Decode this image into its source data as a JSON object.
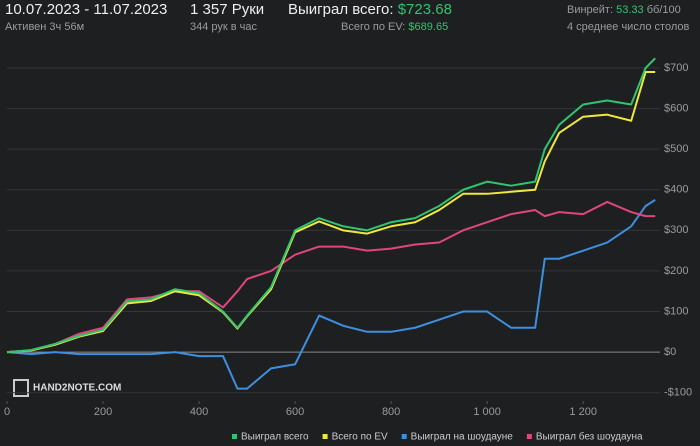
{
  "header": {
    "dates": "10.07.2023 - 11.07.2023",
    "active": "Активен 3ч 56м",
    "hands": "1 357 Руки",
    "hands_per_hour": "344 рук в час",
    "won_label": "Выиграл всего:",
    "won_value": "$723.68",
    "ev_label": "Всего по EV:",
    "ev_value": "$689.65",
    "winrate_label": "Винрейт:",
    "winrate_value": "53.33",
    "winrate_unit": "бб/100",
    "tables": "4 среднее число столов",
    "watermark": "HAND2NOTE.COM"
  },
  "chart_data": {
    "type": "line",
    "x": [
      0,
      50,
      100,
      150,
      200,
      250,
      300,
      350,
      400,
      450,
      480,
      500,
      550,
      600,
      650,
      700,
      750,
      800,
      850,
      900,
      950,
      1000,
      1050,
      1100,
      1120,
      1150,
      1200,
      1250,
      1300,
      1330,
      1350
    ],
    "series": [
      {
        "name": "Выиграл всего",
        "color": "#2fc46e",
        "values": [
          0,
          5,
          20,
          40,
          55,
          125,
          130,
          155,
          145,
          100,
          60,
          90,
          160,
          300,
          330,
          310,
          300,
          320,
          330,
          360,
          400,
          420,
          410,
          420,
          500,
          560,
          610,
          620,
          610,
          700,
          724
        ]
      },
      {
        "name": "Всего по EV",
        "color": "#f0e83c",
        "values": [
          0,
          4,
          18,
          38,
          52,
          120,
          126,
          150,
          140,
          98,
          58,
          88,
          155,
          295,
          322,
          300,
          292,
          310,
          320,
          350,
          390,
          390,
          395,
          400,
          470,
          540,
          580,
          585,
          570,
          690,
          690
        ]
      },
      {
        "name": "Выиграл на шоудауне",
        "color": "#3d8fe0",
        "values": [
          0,
          -5,
          0,
          -5,
          -5,
          -5,
          -5,
          0,
          -10,
          -10,
          -90,
          -90,
          -40,
          -30,
          90,
          65,
          50,
          50,
          60,
          80,
          100,
          100,
          60,
          60,
          230,
          230,
          250,
          270,
          310,
          360,
          375
        ]
      },
      {
        "name": "Выиграл без шоудауна",
        "color": "#e0467a",
        "values": [
          0,
          5,
          20,
          45,
          60,
          130,
          135,
          150,
          150,
          110,
          150,
          180,
          200,
          240,
          260,
          260,
          250,
          255,
          265,
          270,
          300,
          320,
          340,
          350,
          335,
          345,
          340,
          370,
          345,
          335,
          335
        ]
      }
    ],
    "xlim": [
      0,
      1360
    ],
    "xticks": [
      0,
      200,
      400,
      600,
      800,
      {
        "value": 1000,
        "label": "1 000"
      },
      {
        "value": 1200,
        "label": "1 200"
      }
    ],
    "ylim": [
      -118,
      732
    ],
    "yticks": [
      {
        "value": -100,
        "label": "-$100"
      },
      {
        "value": 0,
        "label": "$0"
      },
      {
        "value": 100,
        "label": "$100"
      },
      {
        "value": 200,
        "label": "$200"
      },
      {
        "value": 300,
        "label": "$300"
      },
      {
        "value": 400,
        "label": "$400"
      },
      {
        "value": 500,
        "label": "$500"
      },
      {
        "value": 600,
        "label": "$600"
      },
      {
        "value": 700,
        "label": "$700"
      }
    ],
    "grid": true,
    "legend": "bottom"
  }
}
